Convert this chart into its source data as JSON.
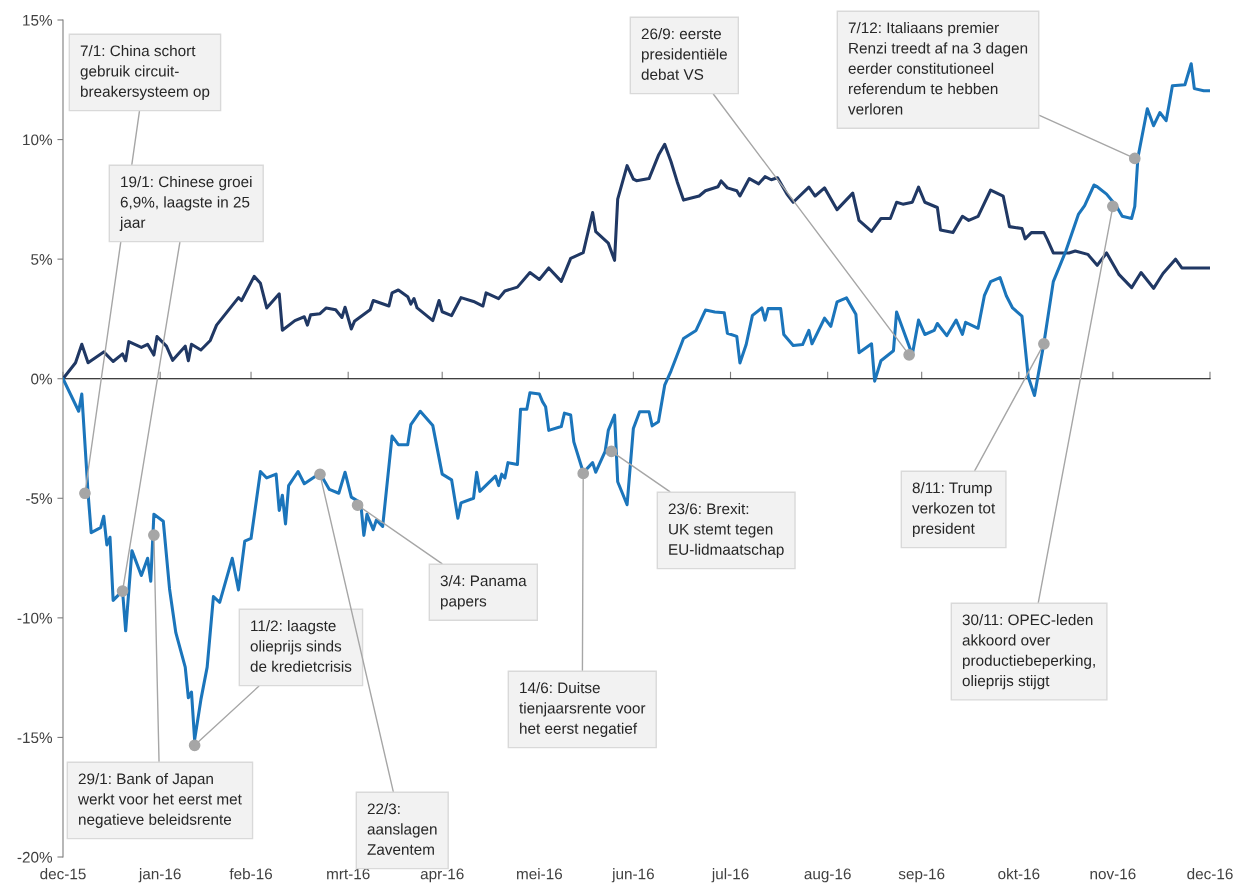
{
  "chart_data": {
    "type": "line",
    "xlim": [
      "2015-12-31",
      "2016-12-31"
    ],
    "xticks": [
      {
        "value": "2015-12-31",
        "label": "dec-15"
      },
      {
        "value": "2016-01-31",
        "label": "jan-16"
      },
      {
        "value": "2016-02-29",
        "label": "feb-16"
      },
      {
        "value": "2016-03-31",
        "label": "mrt-16"
      },
      {
        "value": "2016-04-30",
        "label": "apr-16"
      },
      {
        "value": "2016-05-31",
        "label": "mei-16"
      },
      {
        "value": "2016-06-30",
        "label": "jun-16"
      },
      {
        "value": "2016-07-31",
        "label": "jul-16"
      },
      {
        "value": "2016-08-31",
        "label": "aug-16"
      },
      {
        "value": "2016-09-30",
        "label": "sep-16"
      },
      {
        "value": "2016-10-31",
        "label": "okt-16"
      },
      {
        "value": "2016-11-30",
        "label": "nov-16"
      },
      {
        "value": "2016-12-31",
        "label": "dec-16"
      }
    ],
    "ylim": [
      -20,
      15
    ],
    "yticks": [
      {
        "value": -20,
        "label": "-20%"
      },
      {
        "value": -15,
        "label": "-15%"
      },
      {
        "value": -10,
        "label": "-10%"
      },
      {
        "value": -5,
        "label": "-5%"
      },
      {
        "value": 0,
        "label": "0%"
      },
      {
        "value": 5,
        "label": "5%"
      },
      {
        "value": 10,
        "label": "10%"
      },
      {
        "value": 15,
        "label": "15%"
      }
    ],
    "series": [
      {
        "color": "#203864",
        "x": [
          "2015-12-31",
          "2016-01-04",
          "2016-01-06",
          "2016-01-08",
          "2016-01-13",
          "2016-01-16",
          "2016-01-19",
          "2016-01-20",
          "2016-01-21",
          "2016-01-25",
          "2016-01-27",
          "2016-01-29",
          "2016-01-30",
          "2016-02-02",
          "2016-02-04",
          "2016-02-08",
          "2016-02-09",
          "2016-02-10",
          "2016-02-13",
          "2016-02-16",
          "2016-02-18",
          "2016-02-25",
          "2016-02-26",
          "2016-03-01",
          "2016-03-03",
          "2016-03-05",
          "2016-03-09",
          "2016-03-10",
          "2016-03-14",
          "2016-03-17",
          "2016-03-18",
          "2016-03-19",
          "2016-03-22",
          "2016-03-24",
          "2016-03-27",
          "2016-03-29",
          "2016-03-30",
          "2016-04-01",
          "2016-04-02",
          "2016-04-07",
          "2016-04-08",
          "2016-04-13",
          "2016-04-14",
          "2016-04-16",
          "2016-04-19",
          "2016-04-20",
          "2016-04-21",
          "2016-04-22",
          "2016-04-27",
          "2016-04-29",
          "2016-04-30",
          "2016-05-03",
          "2016-05-06",
          "2016-05-10",
          "2016-05-13",
          "2016-05-14",
          "2016-05-18",
          "2016-05-20",
          "2016-05-24",
          "2016-05-28",
          "2016-05-31",
          "2016-06-03",
          "2016-06-07",
          "2016-06-10",
          "2016-06-14",
          "2016-06-17",
          "2016-06-18",
          "2016-06-22",
          "2016-06-24",
          "2016-06-25",
          "2016-06-28",
          "2016-06-30",
          "2016-07-01",
          "2016-07-05",
          "2016-07-08",
          "2016-07-10",
          "2016-07-12",
          "2016-07-14",
          "2016-07-16",
          "2016-07-21",
          "2016-07-23",
          "2016-07-27",
          "2016-07-28",
          "2016-07-30",
          "2016-08-02",
          "2016-08-03",
          "2016-08-06",
          "2016-08-09",
          "2016-08-11",
          "2016-08-13",
          "2016-08-15",
          "2016-08-18",
          "2016-08-20",
          "2016-08-25",
          "2016-08-27",
          "2016-08-30",
          "2016-09-03",
          "2016-09-08",
          "2016-09-10",
          "2016-09-14",
          "2016-09-17",
          "2016-09-20",
          "2016-09-22",
          "2016-09-24",
          "2016-09-27",
          "2016-09-29",
          "2016-10-01",
          "2016-10-05",
          "2016-10-06",
          "2016-10-10",
          "2016-10-13",
          "2016-10-15",
          "2016-10-18",
          "2016-10-22",
          "2016-10-26",
          "2016-10-28",
          "2016-11-01",
          "2016-11-02",
          "2016-11-04",
          "2016-11-08",
          "2016-11-09",
          "2016-11-11",
          "2016-11-16",
          "2016-11-18",
          "2016-11-22",
          "2016-11-25",
          "2016-11-28",
          "2016-12-02",
          "2016-12-06",
          "2016-12-09",
          "2016-12-13",
          "2016-12-16",
          "2016-12-20",
          "2016-12-22",
          "2016-12-31"
        ],
        "values": [
          0,
          0.67,
          1.44,
          0.67,
          1.12,
          0.72,
          1.04,
          0.75,
          1.55,
          1.31,
          1.44,
          0.99,
          1.76,
          1.36,
          0.77,
          1.36,
          0.75,
          1.44,
          1.2,
          1.6,
          2.24,
          3.39,
          3.27,
          4.28,
          3.99,
          2.96,
          3.55,
          2.03,
          2.43,
          2.59,
          2.24,
          2.67,
          2.72,
          2.96,
          2.88,
          2.56,
          2.99,
          2.08,
          2.4,
          2.88,
          3.27,
          3.04,
          3.59,
          3.71,
          3.43,
          3.12,
          3.35,
          2.96,
          2.43,
          3.27,
          2.8,
          2.64,
          3.39,
          3.23,
          3.04,
          3.59,
          3.35,
          3.67,
          3.83,
          4.44,
          4.15,
          4.63,
          4.07,
          5.03,
          5.27,
          6.95,
          6.15,
          5.67,
          4.95,
          7.51,
          8.91,
          8.35,
          8.28,
          8.37,
          9.34,
          9.8,
          9.08,
          8.23,
          7.47,
          7.64,
          7.86,
          8.03,
          8.27,
          7.98,
          7.86,
          7.64,
          8.37,
          8.15,
          8.45,
          8.32,
          8.4,
          7.72,
          7.38,
          8.01,
          7.64,
          7.98,
          7.07,
          7.76,
          6.62,
          6.16,
          6.7,
          6.7,
          7.38,
          7.3,
          7.38,
          8.01,
          7.38,
          7.16,
          6.22,
          6.11,
          6.79,
          6.62,
          6.79,
          7.89,
          7.64,
          6.36,
          6.28,
          5.85,
          6.11,
          6.11,
          5.85,
          5.26,
          5.26,
          5.34,
          5.2,
          4.74,
          5.26,
          4.35,
          3.81,
          4.44,
          3.78,
          4.4,
          5.0,
          4.63,
          4.63
        ]
      },
      {
        "color": "#1b75bb",
        "x": [
          "2015-12-31",
          "2016-01-05",
          "2016-01-06",
          "2016-01-08",
          "2016-01-09",
          "2016-01-12",
          "2016-01-13",
          "2016-01-14",
          "2016-01-15",
          "2016-01-16",
          "2016-01-19",
          "2016-01-20",
          "2016-01-22",
          "2016-01-25",
          "2016-01-27",
          "2016-01-28",
          "2016-01-29",
          "2016-02-01",
          "2016-02-03",
          "2016-02-05",
          "2016-02-08",
          "2016-02-09",
          "2016-02-10",
          "2016-02-11",
          "2016-02-13",
          "2016-02-15",
          "2016-02-17",
          "2016-02-19",
          "2016-02-23",
          "2016-02-25",
          "2016-02-27",
          "2016-02-29",
          "2016-03-03",
          "2016-03-05",
          "2016-03-08",
          "2016-03-09",
          "2016-03-10",
          "2016-03-11",
          "2016-03-12",
          "2016-03-15",
          "2016-03-17",
          "2016-03-22",
          "2016-03-25",
          "2016-03-28",
          "2016-03-30",
          "2016-04-01",
          "2016-04-04",
          "2016-04-05",
          "2016-04-06",
          "2016-04-08",
          "2016-04-09",
          "2016-04-11",
          "2016-04-14",
          "2016-04-16",
          "2016-04-19",
          "2016-04-20",
          "2016-04-23",
          "2016-04-27",
          "2016-04-30",
          "2016-05-03",
          "2016-05-05",
          "2016-05-06",
          "2016-05-10",
          "2016-05-11",
          "2016-05-12",
          "2016-05-17",
          "2016-05-18",
          "2016-05-19",
          "2016-05-20",
          "2016-05-21",
          "2016-05-24",
          "2016-05-25",
          "2016-05-27",
          "2016-05-28",
          "2016-05-31",
          "2016-06-01",
          "2016-06-02",
          "2016-06-03",
          "2016-06-07",
          "2016-06-08",
          "2016-06-10",
          "2016-06-11",
          "2016-06-14",
          "2016-06-15",
          "2016-06-17",
          "2016-06-18",
          "2016-06-21",
          "2016-06-22",
          "2016-06-24",
          "2016-06-25",
          "2016-06-28",
          "2016-06-30",
          "2016-07-02",
          "2016-07-05",
          "2016-07-06",
          "2016-07-08",
          "2016-07-10",
          "2016-07-12",
          "2016-07-14",
          "2016-07-16",
          "2016-07-20",
          "2016-07-23",
          "2016-07-26",
          "2016-07-29",
          "2016-07-30",
          "2016-08-02",
          "2016-08-03",
          "2016-08-05",
          "2016-08-07",
          "2016-08-10",
          "2016-08-11",
          "2016-08-12",
          "2016-08-16",
          "2016-08-17",
          "2016-08-20",
          "2016-08-23",
          "2016-08-25",
          "2016-08-26",
          "2016-08-30",
          "2016-09-01",
          "2016-09-03",
          "2016-09-06",
          "2016-09-09",
          "2016-09-10",
          "2016-09-14",
          "2016-09-15",
          "2016-09-17",
          "2016-09-21",
          "2016-09-22",
          "2016-09-27",
          "2016-09-29",
          "2016-10-01",
          "2016-10-04",
          "2016-10-05",
          "2016-10-08",
          "2016-10-11",
          "2016-10-13",
          "2016-10-14",
          "2016-10-18",
          "2016-10-20",
          "2016-10-22",
          "2016-10-25",
          "2016-10-27",
          "2016-10-29",
          "2016-11-01",
          "2016-11-03",
          "2016-11-05",
          "2016-11-08",
          "2016-11-11",
          "2016-11-15",
          "2016-11-19",
          "2016-11-21",
          "2016-11-24",
          "2016-11-25",
          "2016-11-28",
          "2016-12-01",
          "2016-12-03",
          "2016-12-06",
          "2016-12-07",
          "2016-12-08",
          "2016-12-11",
          "2016-12-13",
          "2016-12-15",
          "2016-12-17",
          "2016-12-18",
          "2016-12-19",
          "2016-12-23",
          "2016-12-25",
          "2016-12-26",
          "2016-12-29",
          "2016-12-31"
        ],
        "values": [
          0,
          -1.36,
          -0.64,
          -4.79,
          -6.44,
          -6.23,
          -5.75,
          -6.95,
          -6.63,
          -9.27,
          -8.87,
          -10.54,
          -7.19,
          -8.23,
          -7.51,
          -8.47,
          -5.67,
          -5.96,
          -8.79,
          -10.62,
          -12.06,
          -13.34,
          -13.1,
          -15.1,
          -13.42,
          -12.06,
          -9.11,
          -9.35,
          -7.51,
          -8.83,
          -6.79,
          -6.68,
          -3.88,
          -4.15,
          -3.99,
          -5.51,
          -4.87,
          -6.07,
          -4.47,
          -3.88,
          -4.39,
          -3.95,
          -4.63,
          -4.79,
          -3.91,
          -4.95,
          -5.19,
          -6.55,
          -5.67,
          -6.31,
          -5.91,
          -6.18,
          -2.4,
          -2.76,
          -2.76,
          -1.92,
          -1.36,
          -1.96,
          -3.99,
          -4.23,
          -5.83,
          -5.19,
          -5.0,
          -3.91,
          -4.71,
          -4.07,
          -4.47,
          -3.99,
          -4.15,
          -3.51,
          -3.59,
          -1.28,
          -1.28,
          -0.59,
          -0.64,
          -0.96,
          -1.17,
          -2.16,
          -2.0,
          -1.44,
          -1.52,
          -2.64,
          -3.91,
          -3.79,
          -3.51,
          -3.91,
          -3.04,
          -2.16,
          -1.52,
          -4.31,
          -5.27,
          -2.08,
          -1.38,
          -1.38,
          -1.97,
          -1.8,
          -0.27,
          0.32,
          1.0,
          1.68,
          2.02,
          2.87,
          2.79,
          2.76,
          1.9,
          1.77,
          0.66,
          1.43,
          2.65,
          2.96,
          2.45,
          2.93,
          2.93,
          1.85,
          1.39,
          1.43,
          2.02,
          1.46,
          2.53,
          2.19,
          3.21,
          3.38,
          2.7,
          1.09,
          1.46,
          -0.1,
          0.75,
          1.17,
          2.79,
          1.0,
          2.45,
          1.85,
          2.02,
          2.31,
          1.8,
          2.45,
          1.85,
          2.36,
          2.11,
          3.47,
          4.06,
          4.23,
          3.47,
          2.96,
          2.62,
          0.07,
          -0.7,
          1.48,
          4.06,
          5.34,
          6.87,
          7.24,
          8.1,
          8.03,
          7.72,
          7.24,
          6.79,
          6.7,
          7.21,
          9.25,
          11.29,
          10.58,
          11.13,
          10.79,
          11.5,
          12.25,
          12.29,
          13.17,
          12.13,
          12.04,
          12.04
        ]
      }
    ],
    "annotations": [
      {
        "text": "7/1: China schort\ngebruik circuit-\nbreakersysteem op",
        "x": "2016-01-07",
        "y": -4.79
      },
      {
        "text": "19/1: Chinese groei\n6,9%, laagste in 25\njaar",
        "x": "2016-01-19",
        "y": -8.88
      },
      {
        "text": "29/1: Bank of Japan\nwerkt voor het eerst met\nnegatieve beleidsrente",
        "x": "2016-01-29",
        "y": -6.54
      },
      {
        "text": "11/2: laagste\nolieprijs sinds\nde kredietcrisis",
        "x": "2016-02-11",
        "y": -15.33
      },
      {
        "text": "22/3:\naanslagen\nZaventem",
        "x": "2016-03-22",
        "y": -4.0
      },
      {
        "text": "3/4: Panama\npapers",
        "x": "2016-04-03",
        "y": -5.29
      },
      {
        "text": "14/6: Duitse\ntienjaarsrente voor\nhet eerst negatief",
        "x": "2016-06-14",
        "y": -3.96
      },
      {
        "text": "23/6: Brexit:\nUK stemt tegen\nEU-lidmaatschap",
        "x": "2016-06-23",
        "y": -3.04
      },
      {
        "text": "26/9: eerste\npresidentiële\ndebat VS",
        "x": "2016-09-26",
        "y": 1.0
      },
      {
        "text": "8/11: Trump\nverkozen tot\npresident",
        "x": "2016-11-08",
        "y": 1.46
      },
      {
        "text": "30/11: OPEC-leden\nakkoord over\nproductiebeperking,\nolieprijs stijgt",
        "x": "2016-11-30",
        "y": 7.21
      },
      {
        "text": "7/12: Italiaans premier\nRenzi treedt af na 3 dagen\neerder constitutioneel\nreferendum te hebben\nverloren",
        "x": "2016-12-07",
        "y": 9.21
      }
    ]
  }
}
